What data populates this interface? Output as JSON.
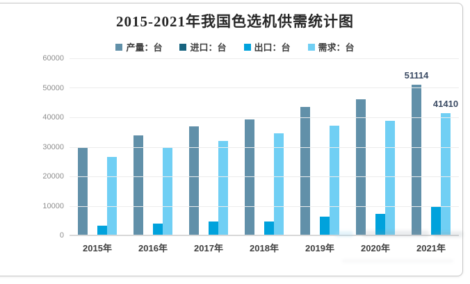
{
  "chart_data": {
    "type": "bar",
    "title": "2015-2021年我国色选机供需统计图",
    "categories": [
      "2015年",
      "2016年",
      "2017年",
      "2018年",
      "2019年",
      "2020年",
      "2021年"
    ],
    "series": [
      {
        "name": "产量：台",
        "color": "#6190A9",
        "values": [
          30000,
          33800,
          37000,
          39400,
          43600,
          46100,
          51114
        ]
      },
      {
        "name": "进口：台",
        "color": "#17637F",
        "values": [
          100,
          100,
          100,
          100,
          100,
          100,
          100
        ]
      },
      {
        "name": "出口：台",
        "color": "#00A2DC",
        "values": [
          3300,
          3900,
          4700,
          4700,
          6300,
          7400,
          9600
        ]
      },
      {
        "name": "需求：台",
        "color": "#70CFF4",
        "values": [
          26500,
          29800,
          32100,
          34600,
          37100,
          38900,
          41410
        ]
      }
    ],
    "point_labels": [
      {
        "series": 0,
        "category": 6,
        "text": "51114"
      },
      {
        "series": 3,
        "category": 6,
        "text": "41410"
      }
    ],
    "y_ticks": [
      0,
      10000,
      20000,
      30000,
      40000,
      50000,
      60000
    ],
    "ylim": [
      0,
      60000
    ],
    "grid": true,
    "legend_position": "top",
    "xlabel": "",
    "ylabel": ""
  }
}
